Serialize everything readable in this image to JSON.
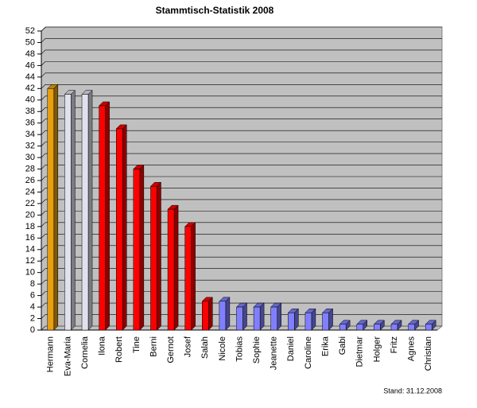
{
  "chart_data": {
    "type": "bar",
    "title": "Stammtisch-Statistik 2008",
    "footnote": "Stand: 31.12.2008",
    "categories": [
      "Hermann",
      "Eva-Maria",
      "Cornelia",
      "Ilona",
      "Robert",
      "Tine",
      "Berni",
      "Gernot",
      "Josef",
      "Salah",
      "Nicole",
      "Tobias",
      "Sophie",
      "Jeanette",
      "Daniel",
      "Caroline",
      "Erika",
      "Gabi",
      "Dietmar",
      "Holger",
      "Fritz",
      "Agnes",
      "Christian"
    ],
    "values": [
      42,
      41,
      41,
      39,
      35,
      28,
      25,
      21,
      18,
      5,
      5,
      4,
      4,
      4,
      3,
      3,
      3,
      1,
      1,
      1,
      1,
      1,
      1
    ],
    "colors": [
      "#e8a010",
      "#e0e0ee",
      "#e0e0ee",
      "#ff0000",
      "#ff0000",
      "#ff0000",
      "#ff0000",
      "#ff0000",
      "#ff0000",
      "#ff0000",
      "#8080ff",
      "#8080ff",
      "#8080ff",
      "#8080ff",
      "#8080ff",
      "#8080ff",
      "#8080ff",
      "#8080ff",
      "#8080ff",
      "#8080ff",
      "#8080ff",
      "#8080ff",
      "#8080ff"
    ],
    "ylim": [
      0,
      52
    ],
    "yticks": [
      0,
      2,
      4,
      6,
      8,
      10,
      12,
      14,
      16,
      18,
      20,
      22,
      24,
      26,
      28,
      30,
      32,
      34,
      36,
      38,
      40,
      42,
      44,
      46,
      48,
      50,
      52
    ],
    "grid": true
  }
}
